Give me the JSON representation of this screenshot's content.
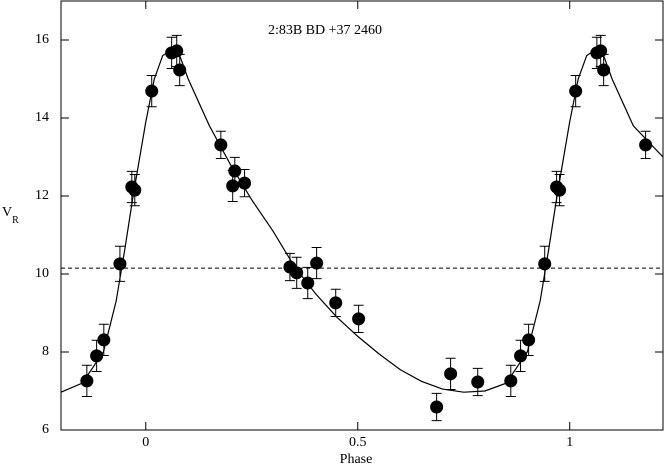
{
  "chart_data": {
    "type": "scatter",
    "annotation": "2:83B   BD +37 2460",
    "xlabel": "Phase",
    "ylabel": "V",
    "ylabel_subscript": "R",
    "xlim": [
      -0.2,
      1.22
    ],
    "ylim": [
      6,
      17
    ],
    "xticks": [
      0,
      0.5,
      1
    ],
    "yticks": [
      6,
      8,
      10,
      12,
      14,
      16
    ],
    "points": {
      "color": "#000000",
      "x": [
        -0.139,
        -0.116,
        -0.099,
        -0.061,
        -0.033,
        -0.026,
        0.014,
        0.061,
        0.073,
        0.08,
        0.177,
        0.21,
        0.205,
        0.233,
        0.34,
        0.356,
        0.382,
        0.403,
        0.448,
        0.502,
        0.686,
        0.719,
        0.783,
        0.861,
        0.884,
        0.903,
        0.941,
        0.969,
        0.976,
        1.014,
        1.064,
        1.073,
        1.08,
        1.179
      ],
      "values": [
        7.26,
        7.9,
        8.31,
        10.26,
        12.23,
        12.15,
        14.69,
        15.67,
        15.72,
        15.23,
        13.31,
        12.64,
        12.26,
        12.33,
        10.18,
        10.03,
        9.77,
        10.28,
        9.26,
        8.85,
        6.59,
        7.44,
        7.23,
        7.26,
        7.9,
        8.31,
        10.26,
        12.23,
        12.15,
        14.69,
        15.67,
        15.72,
        15.23,
        13.31
      ],
      "errors": [
        0.4,
        0.4,
        0.4,
        0.45,
        0.4,
        0.4,
        0.4,
        0.4,
        0.4,
        0.4,
        0.35,
        0.35,
        0.4,
        0.35,
        0.35,
        0.4,
        0.4,
        0.4,
        0.35,
        0.35,
        0.35,
        0.4,
        0.35,
        0.4,
        0.4,
        0.4,
        0.45,
        0.4,
        0.4,
        0.4,
        0.4,
        0.4,
        0.4,
        0.35
      ]
    },
    "fit": {
      "color": "#000000",
      "x": [
        -0.2,
        -0.15,
        -0.1,
        -0.07,
        -0.05,
        -0.03,
        0,
        0.02,
        0.04,
        0.06,
        0.08,
        0.1,
        0.15,
        0.2,
        0.25,
        0.3,
        0.35,
        0.4,
        0.45,
        0.5,
        0.55,
        0.6,
        0.65,
        0.7,
        0.75,
        0.8,
        0.85,
        0.9,
        0.93,
        0.95,
        0.97,
        1.0,
        1.02,
        1.04,
        1.06,
        1.08,
        1.1,
        1.15,
        1.22
      ],
      "values": [
        6.97,
        7.2,
        8.0,
        9.3,
        10.6,
        12.0,
        13.9,
        15.0,
        15.6,
        15.75,
        15.6,
        15.0,
        13.8,
        12.8,
        11.9,
        11.1,
        10.2,
        9.5,
        8.9,
        8.4,
        7.95,
        7.55,
        7.25,
        7.05,
        6.97,
        7.0,
        7.2,
        8.0,
        9.3,
        10.6,
        12.0,
        13.9,
        15.0,
        15.6,
        15.75,
        15.6,
        15.0,
        13.8,
        13.0
      ]
    },
    "reference_line": {
      "value": 10.15,
      "style": "dashed",
      "color": "#000000"
    }
  }
}
